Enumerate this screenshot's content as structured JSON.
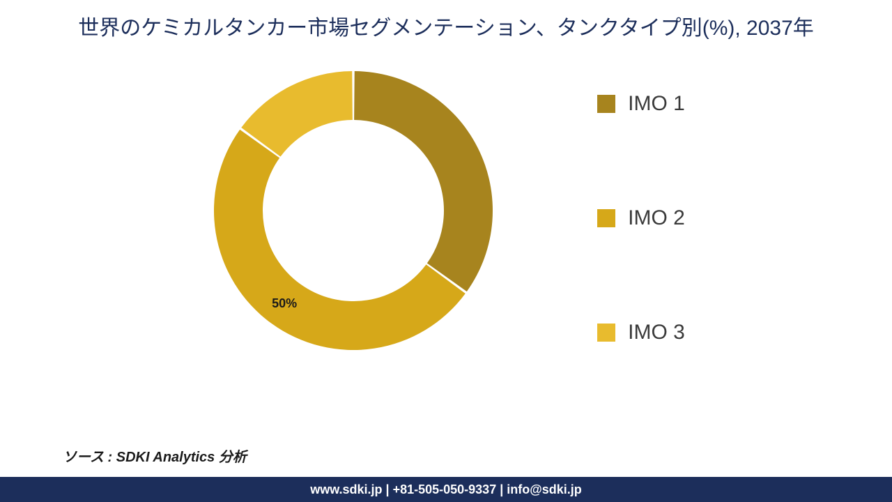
{
  "title": "世界のケミカルタンカー市場セグメンテーション、タンクタイプ別(%), 2037年",
  "title_color": "#1c2e5b",
  "title_fontsize": 30,
  "background_color": "#ffffff",
  "chart": {
    "type": "donut",
    "series": [
      {
        "label": "IMO 1",
        "value": 35,
        "color": "#a7841e"
      },
      {
        "label": "IMO 2",
        "value": 50,
        "color": "#d6a819"
      },
      {
        "label": "IMO 3",
        "value": 15,
        "color": "#e8bb2e"
      }
    ],
    "inner_radius": 0.65,
    "outer_radius": 1.0,
    "gap_deg": 1.0,
    "label_shown": "50%",
    "label_fontsize": 18,
    "label_color": "#1a1a1a"
  },
  "legend": {
    "fontsize": 30,
    "swatch_size": 26,
    "text_color": "#3a3a3a",
    "items": [
      {
        "label": "IMO 1",
        "color": "#a7841e"
      },
      {
        "label": "IMO 2",
        "color": "#d6a819"
      },
      {
        "label": " IMO 3",
        "color": "#e8bb2e"
      }
    ]
  },
  "source": "ソース : SDKI Analytics 分析",
  "source_fontsize": 20,
  "footer": {
    "text": "www.sdki.jp | +81-505-050-9337 | info@sdki.jp",
    "background": "#1c2e5b",
    "color": "#ffffff",
    "fontsize": 18
  }
}
